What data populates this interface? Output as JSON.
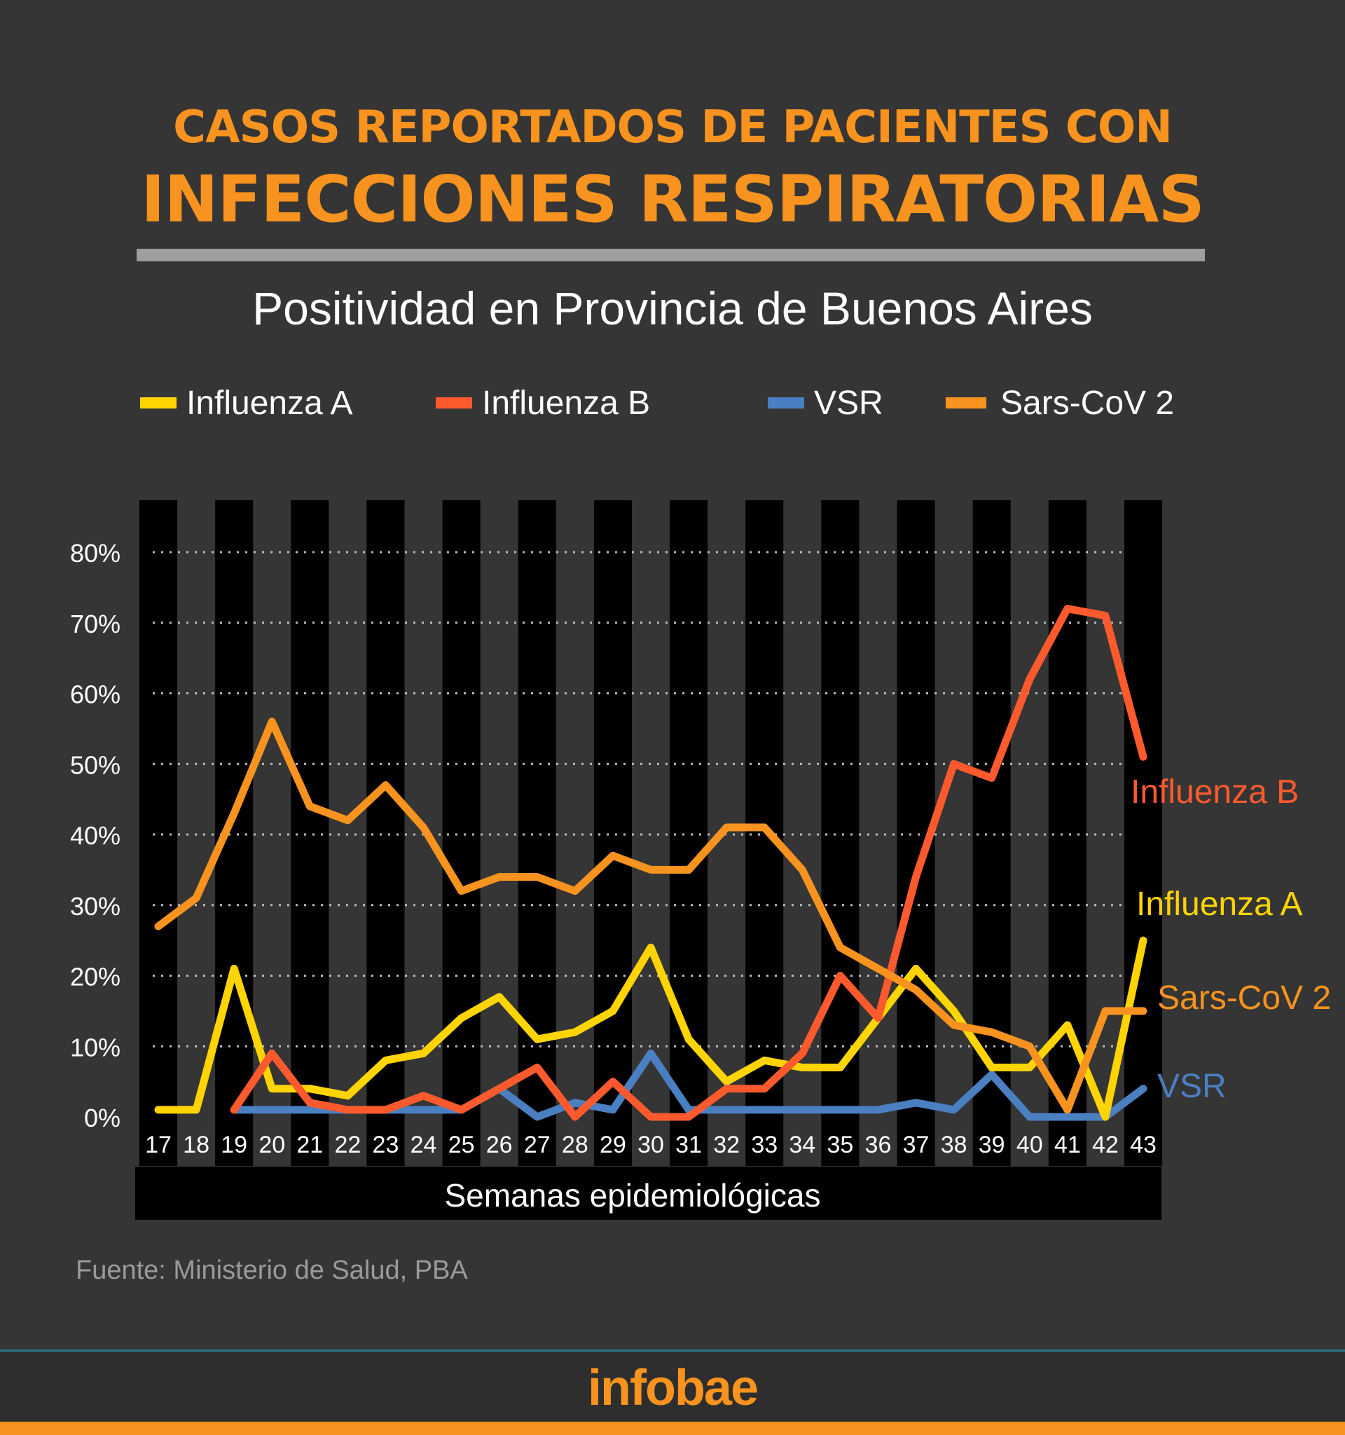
{
  "header": {
    "title_line1": "CASOS REPORTADOS DE PACIENTES CON",
    "title_line2": "INFECCIONES RESPIRATORIAS",
    "subtitle": "Positividad en Provincia de Buenos Aires"
  },
  "source": "Fuente: Ministerio de Salud, PBA",
  "brand": "infobae",
  "colors": {
    "background": "#353535",
    "accent": "#f7931e",
    "influenza_a": "#ffd400",
    "influenza_b": "#ff5a2d",
    "vsr": "#4a7fc1",
    "sars_cov_2": "#f7931e",
    "column_band": "#000000"
  },
  "chart_data": {
    "type": "line",
    "title": "Positividad en Provincia de Buenos Aires",
    "xlabel": "Semanas epidemiológicas",
    "ylabel": "",
    "ylim": [
      0,
      80
    ],
    "yticks": [
      "0%",
      "10%",
      "20%",
      "30%",
      "40%",
      "50%",
      "60%",
      "70%",
      "80%"
    ],
    "categories": [
      "17",
      "18",
      "19",
      "20",
      "21",
      "22",
      "23",
      "24",
      "25",
      "26",
      "27",
      "28",
      "29",
      "30",
      "31",
      "32",
      "33",
      "34",
      "35",
      "36",
      "37",
      "38",
      "39",
      "40",
      "41",
      "42",
      "43"
    ],
    "legend_position": "top",
    "grid": true,
    "series": [
      {
        "name": "Influenza A",
        "color": "#ffd400",
        "end_label": "Influenza A",
        "values": [
          1,
          1,
          21,
          4,
          4,
          3,
          8,
          9,
          14,
          17,
          11,
          12,
          15,
          24,
          11,
          5,
          8,
          7,
          7,
          14,
          21,
          15,
          7,
          7,
          13,
          0,
          25
        ]
      },
      {
        "name": "Influenza B",
        "color": "#ff5a2d",
        "end_label": "Influenza B",
        "values": [
          null,
          null,
          1,
          9,
          2,
          1,
          1,
          3,
          1,
          4,
          7,
          0,
          5,
          0,
          0,
          4,
          4,
          9,
          20,
          14,
          34,
          50,
          48,
          62,
          72,
          71,
          51
        ]
      },
      {
        "name": "VSR",
        "color": "#4a7fc1",
        "end_label": "VSR",
        "values": [
          null,
          null,
          1,
          1,
          1,
          1,
          1,
          1,
          1,
          4,
          0,
          2,
          1,
          9,
          1,
          1,
          1,
          1,
          1,
          1,
          2,
          1,
          6,
          0,
          0,
          0,
          4
        ]
      },
      {
        "name": "Sars-CoV 2",
        "color": "#f7931e",
        "end_label": "Sars-CoV 2",
        "values": [
          27,
          31,
          43,
          56,
          44,
          42,
          47,
          41,
          32,
          34,
          34,
          32,
          37,
          35,
          35,
          41,
          41,
          35,
          24,
          21,
          18,
          13,
          12,
          10,
          1,
          15,
          15
        ]
      }
    ]
  }
}
